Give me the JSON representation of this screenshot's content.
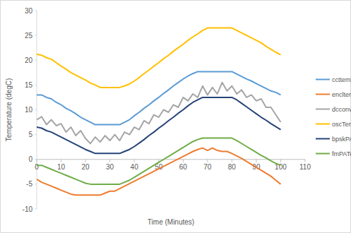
{
  "chart_data": {
    "type": "line",
    "x_label": "Time (Minutes)",
    "y_label": "Temperature (degC)",
    "x": [
      0,
      2,
      4,
      6,
      8,
      10,
      12,
      14,
      16,
      18,
      20,
      22,
      24,
      26,
      28,
      30,
      32,
      34,
      36,
      38,
      40,
      42,
      44,
      46,
      48,
      50,
      52,
      54,
      56,
      58,
      60,
      62,
      64,
      66,
      68,
      70,
      72,
      74,
      76,
      78,
      80,
      82,
      84,
      86,
      88,
      90,
      92,
      94,
      96,
      98,
      100
    ],
    "series": [
      {
        "name": "ccttemp",
        "color": "#5b9bd5",
        "values": [
          13.0,
          13.0,
          12.5,
          12.2,
          11.5,
          11.0,
          10.3,
          9.8,
          9.2,
          8.5,
          8.0,
          7.5,
          7.0,
          7.0,
          7.0,
          7.0,
          7.0,
          7.0,
          7.5,
          8.0,
          8.8,
          9.5,
          10.3,
          11.0,
          11.8,
          12.5,
          13.3,
          14.0,
          14.8,
          15.5,
          16.2,
          16.8,
          17.3,
          17.7,
          17.7,
          17.7,
          17.7,
          17.7,
          17.7,
          17.7,
          17.7,
          17.2,
          16.7,
          16.2,
          15.8,
          15.3,
          14.8,
          14.3,
          13.8,
          13.5,
          13.0
        ]
      },
      {
        "name": "encltemp",
        "color": "#ed7d31",
        "values": [
          -4,
          -4.6,
          -5,
          -5.4,
          -5.8,
          -6.2,
          -6.6,
          -7,
          -7.2,
          -7.2,
          -7.2,
          -7.2,
          -7.2,
          -7.2,
          -6.8,
          -6.4,
          -6.4,
          -5.9,
          -5.4,
          -4.9,
          -4.4,
          -3.9,
          -3.4,
          -2.9,
          -2.4,
          -1.9,
          -1.4,
          -0.9,
          -0.4,
          0.1,
          0.6,
          1.1,
          1.6,
          2,
          2.3,
          1.8,
          2.3,
          1.8,
          1.6,
          1.6,
          1.2,
          0.7,
          0.2,
          -0.4,
          -1,
          -1.6,
          -2.2,
          -2.8,
          -3.4,
          -4.2,
          -5
        ]
      },
      {
        "name": "dcconvtemp",
        "color": "#a5a5a5",
        "values": [
          8,
          8.6,
          7,
          8,
          6.8,
          7.2,
          5.5,
          6.5,
          4.8,
          5.8,
          4.2,
          3.2,
          4.5,
          3.5,
          4.8,
          3.8,
          5,
          3.8,
          5.5,
          5,
          6.5,
          6,
          7.8,
          7.2,
          9,
          8.5,
          10,
          9.5,
          11,
          10.5,
          12.5,
          11.8,
          13.2,
          12.5,
          14.8,
          13,
          14.5,
          13.2,
          15.5,
          13.8,
          14.8,
          13.2,
          14,
          12.5,
          13,
          11.8,
          12.2,
          10.5,
          10.5,
          9,
          7.5
        ]
      },
      {
        "name": "oscTemp",
        "color": "#ffc000",
        "values": [
          21.2,
          21,
          20.5,
          20.2,
          19.5,
          18.8,
          18.2,
          17.5,
          17,
          16.5,
          16,
          15.4,
          15,
          14.5,
          14.5,
          14.5,
          14.5,
          14.5,
          14.8,
          15.2,
          15.8,
          16.5,
          17.3,
          18,
          18.8,
          19.5,
          20.3,
          21,
          21.8,
          22.5,
          23.2,
          24,
          24.7,
          25.3,
          26,
          26.5,
          26.5,
          26.5,
          26.5,
          26.5,
          26.5,
          26,
          25.5,
          25,
          24.5,
          24,
          23.5,
          22.8,
          22.2,
          21.6,
          21.1
        ]
      },
      {
        "name": "bpskPATemp",
        "color": "#264478",
        "values": [
          6.5,
          6.3,
          5.8,
          5.5,
          5,
          4.5,
          4,
          3.5,
          3,
          2.5,
          2,
          1.6,
          1.2,
          1.2,
          1.2,
          1.2,
          1.2,
          1.2,
          1.6,
          2,
          2.6,
          3.3,
          4,
          4.8,
          5.5,
          6.3,
          7,
          7.8,
          8.5,
          9.3,
          10,
          10.8,
          11.5,
          12,
          12.5,
          12.5,
          12.5,
          12.5,
          12.5,
          12.5,
          12.5,
          12,
          11.3,
          10.6,
          9.9,
          9.2,
          8.5,
          7.9,
          7.2,
          6.6,
          6
        ]
      },
      {
        "name": "fmPATemp",
        "color": "#70ad47",
        "values": [
          -1.2,
          -1.2,
          -1.6,
          -2,
          -2.4,
          -2.8,
          -3.2,
          -3.6,
          -4,
          -4.4,
          -4.8,
          -5,
          -5,
          -5,
          -5,
          -5,
          -5,
          -5,
          -4.6,
          -4.2,
          -3.6,
          -3,
          -2.4,
          -1.8,
          -1.2,
          -0.6,
          0,
          0.6,
          1.2,
          1.8,
          2.4,
          3,
          3.6,
          4,
          4.3,
          4.3,
          4.3,
          4.3,
          4.3,
          4.3,
          4.3,
          3.8,
          3.2,
          2.6,
          2,
          1.4,
          0.8,
          0.3,
          -0.3,
          -0.8,
          -1.2
        ]
      }
    ],
    "xlim": [
      0,
      110
    ],
    "xticks": [
      0,
      10,
      20,
      30,
      40,
      50,
      60,
      70,
      80,
      90,
      100,
      110
    ],
    "ylim": [
      -10,
      30
    ],
    "yticks": [
      -10,
      -5,
      0,
      5,
      10,
      15,
      20,
      25,
      30
    ],
    "grid": false,
    "legend": "right"
  }
}
